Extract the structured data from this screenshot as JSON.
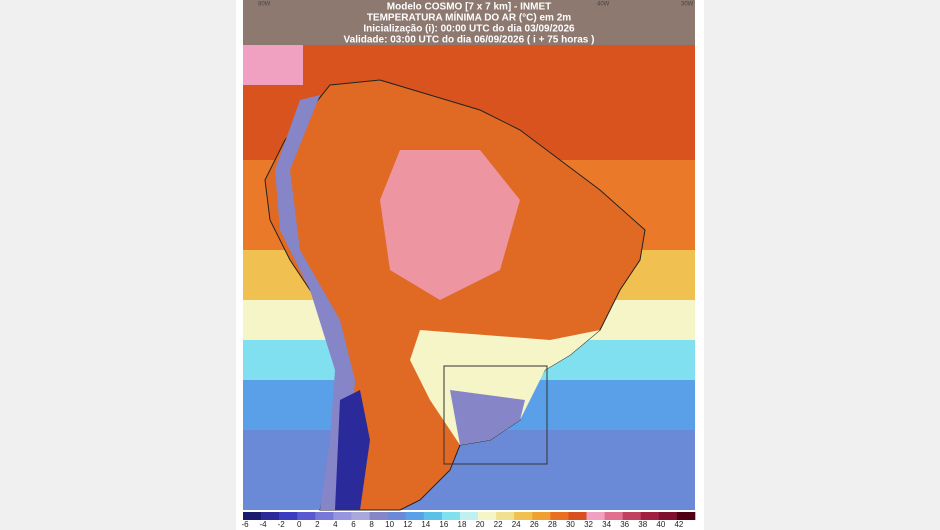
{
  "header": {
    "lines": [
      "Modelo COSMO [7 x 7 km] - INMET",
      "TEMPERATURA MÍNIMA DO AR (°C) em 2m",
      "Inicialização (i): 00:00 UTC do dia 03/09/2026",
      "Validade: 03:00 UTC do dia 06/09/2026 ( i + 75 horas )"
    ]
  },
  "axis_labels": {
    "top": [
      "80W",
      "40W",
      "30W"
    ]
  },
  "colorbar": {
    "labels": [
      -6,
      -4,
      -2,
      0,
      2,
      4,
      6,
      8,
      10,
      12,
      14,
      16,
      18,
      20,
      22,
      24,
      26,
      28,
      30,
      32,
      34,
      36,
      38,
      40,
      42
    ],
    "colors": [
      "#1a1a6e",
      "#2a2a9a",
      "#3c3cc0",
      "#5a5ad0",
      "#7878d8",
      "#9696e0",
      "#a8a8dc",
      "#8585c8",
      "#6a8ad8",
      "#5aa0e8",
      "#5ac0e8",
      "#80e0f0",
      "#c0f0f0",
      "#f5f5c8",
      "#f0e090",
      "#f0c050",
      "#f0a030",
      "#e87020",
      "#d85020",
      "#f0a0c0",
      "#e07090",
      "#c04060",
      "#a02040",
      "#801030",
      "#500010"
    ]
  }
}
